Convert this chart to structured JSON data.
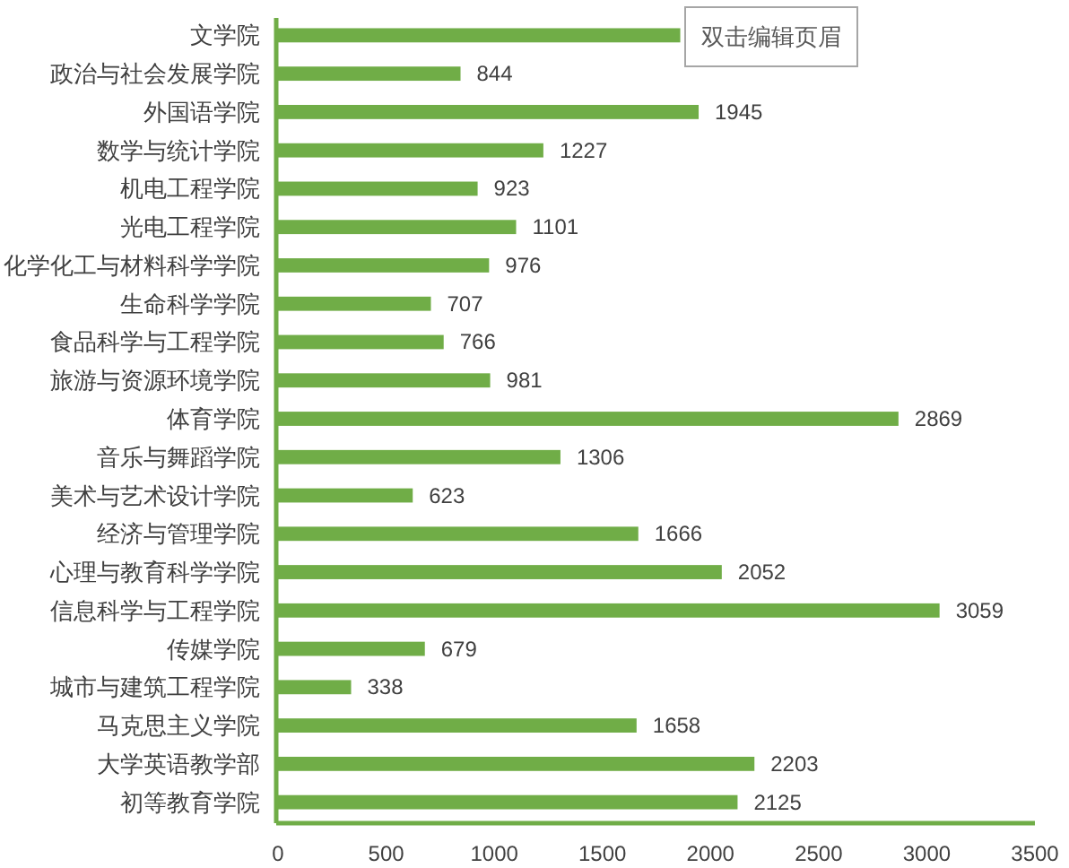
{
  "chart_data": {
    "type": "bar",
    "orientation": "horizontal",
    "categories": [
      "文学院",
      "政治与社会发展学院",
      "外国语学院",
      "数学与统计学院",
      "机电工程学院",
      "光电工程学院",
      "化学化工与材料科学学院",
      "生命科学学院",
      "食品科学与工程学院",
      "旅游与资源环境学院",
      "体育学院",
      "音乐与舞蹈学院",
      "美术与艺术设计学院",
      "经济与管理学院",
      "心理与教育科学学院",
      "信息科学与工程学院",
      "传媒学院",
      "城市与建筑工程学院",
      "马克思主义学院",
      "大学英语教学部",
      "初等教育学院"
    ],
    "values": [
      1860,
      844,
      1945,
      1227,
      923,
      1101,
      976,
      707,
      766,
      981,
      2869,
      1306,
      623,
      1666,
      2052,
      3059,
      679,
      338,
      1658,
      2203,
      2125
    ],
    "value_labels": [
      null,
      "844",
      "1945",
      "1227",
      "923",
      "1101",
      "976",
      "707",
      "766",
      "981",
      "2869",
      "1306",
      "623",
      "1666",
      "2052",
      "3059",
      "679",
      "338",
      "1658",
      "2203",
      "2125"
    ],
    "color": "#70ad47",
    "xlim": [
      0,
      3500
    ],
    "xticks": [
      0,
      500,
      1000,
      1500,
      2000,
      2500,
      3000,
      3500
    ],
    "annotations": [
      "双击编辑页眉"
    ]
  }
}
